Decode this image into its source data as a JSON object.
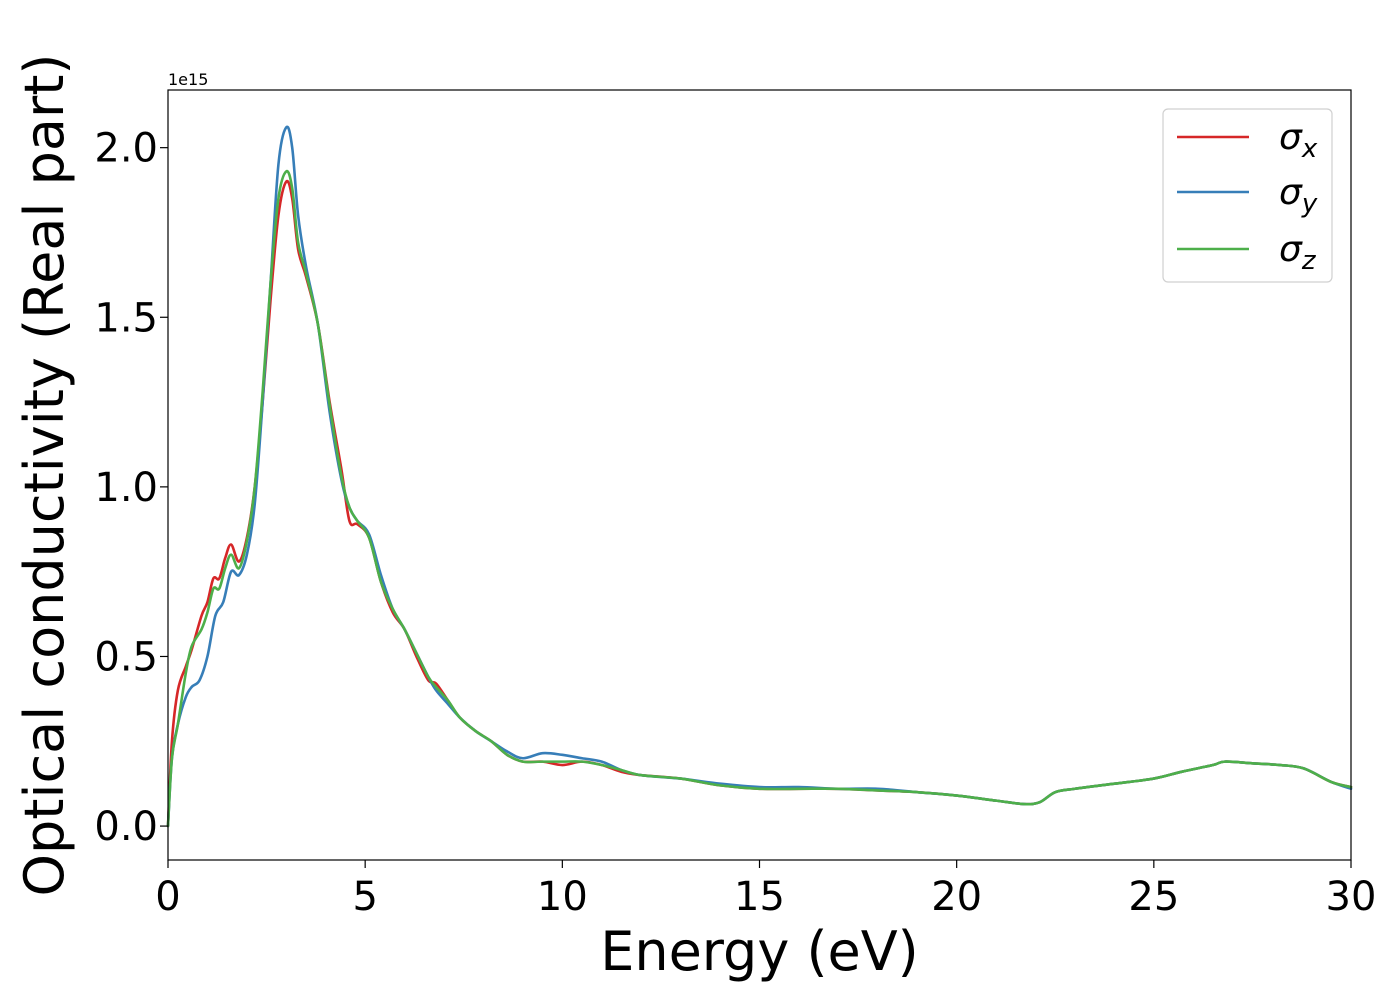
{
  "chart_data": {
    "type": "line",
    "xlabel": "Energy (eV)",
    "ylabel": "Optical conductivity (Real part)",
    "y_offset_label": "1e15",
    "y_multiplier": 1000000000000000.0,
    "xlim": [
      0,
      30
    ],
    "ylim": [
      -0.1,
      2.17
    ],
    "x_ticks": [
      0,
      5,
      10,
      15,
      20,
      25,
      30
    ],
    "x_tick_labels": [
      "0",
      "5",
      "10",
      "15",
      "20",
      "25",
      "30"
    ],
    "y_ticks": [
      0.0,
      0.5,
      1.0,
      1.5,
      2.0
    ],
    "y_tick_labels": [
      "0.0",
      "0.5",
      "1.0",
      "1.5",
      "2.0"
    ],
    "grid": false,
    "legend_position": "top-right",
    "series": [
      {
        "name": "σ",
        "subscript": "x",
        "color": "#d62728",
        "points": [
          [
            0,
            0.0
          ],
          [
            0.1,
            0.25
          ],
          [
            0.25,
            0.4
          ],
          [
            0.45,
            0.47
          ],
          [
            0.6,
            0.52
          ],
          [
            0.85,
            0.62
          ],
          [
            1.0,
            0.66
          ],
          [
            1.15,
            0.73
          ],
          [
            1.3,
            0.73
          ],
          [
            1.45,
            0.79
          ],
          [
            1.6,
            0.83
          ],
          [
            1.8,
            0.78
          ],
          [
            2.0,
            0.85
          ],
          [
            2.2,
            1.0
          ],
          [
            2.4,
            1.25
          ],
          [
            2.6,
            1.55
          ],
          [
            2.8,
            1.8
          ],
          [
            3.0,
            1.9
          ],
          [
            3.15,
            1.85
          ],
          [
            3.3,
            1.7
          ],
          [
            3.5,
            1.62
          ],
          [
            3.8,
            1.48
          ],
          [
            4.1,
            1.25
          ],
          [
            4.4,
            1.05
          ],
          [
            4.6,
            0.9
          ],
          [
            4.8,
            0.89
          ],
          [
            5.1,
            0.85
          ],
          [
            5.4,
            0.72
          ],
          [
            5.7,
            0.63
          ],
          [
            6.0,
            0.58
          ],
          [
            6.3,
            0.5
          ],
          [
            6.6,
            0.43
          ],
          [
            6.8,
            0.42
          ],
          [
            7.1,
            0.37
          ],
          [
            7.4,
            0.32
          ],
          [
            7.8,
            0.28
          ],
          [
            8.2,
            0.25
          ],
          [
            8.6,
            0.21
          ],
          [
            9.0,
            0.19
          ],
          [
            9.5,
            0.19
          ],
          [
            10.0,
            0.18
          ],
          [
            10.5,
            0.19
          ],
          [
            11.0,
            0.18
          ],
          [
            11.5,
            0.16
          ],
          [
            12.0,
            0.15
          ],
          [
            13.0,
            0.14
          ],
          [
            14.0,
            0.12
          ],
          [
            15.0,
            0.11
          ],
          [
            16.0,
            0.11
          ],
          [
            17.0,
            0.11
          ],
          [
            18.0,
            0.105
          ],
          [
            19.0,
            0.1
          ],
          [
            20.0,
            0.09
          ],
          [
            21.0,
            0.075
          ],
          [
            21.7,
            0.065
          ],
          [
            22.1,
            0.07
          ],
          [
            22.5,
            0.1
          ],
          [
            23.0,
            0.11
          ],
          [
            24.0,
            0.125
          ],
          [
            25.0,
            0.14
          ],
          [
            25.7,
            0.16
          ],
          [
            26.5,
            0.18
          ],
          [
            26.8,
            0.19
          ],
          [
            27.5,
            0.185
          ],
          [
            28.2,
            0.18
          ],
          [
            28.8,
            0.17
          ],
          [
            29.5,
            0.13
          ],
          [
            30,
            0.115
          ]
        ]
      },
      {
        "name": "σ",
        "subscript": "y",
        "color": "#377eb8",
        "points": [
          [
            0,
            0.0
          ],
          [
            0.1,
            0.2
          ],
          [
            0.25,
            0.3
          ],
          [
            0.45,
            0.38
          ],
          [
            0.6,
            0.41
          ],
          [
            0.8,
            0.43
          ],
          [
            1.0,
            0.5
          ],
          [
            1.2,
            0.62
          ],
          [
            1.4,
            0.66
          ],
          [
            1.6,
            0.75
          ],
          [
            1.8,
            0.74
          ],
          [
            2.0,
            0.8
          ],
          [
            2.2,
            0.95
          ],
          [
            2.4,
            1.25
          ],
          [
            2.6,
            1.6
          ],
          [
            2.8,
            1.95
          ],
          [
            3.0,
            2.06
          ],
          [
            3.15,
            2.0
          ],
          [
            3.3,
            1.8
          ],
          [
            3.5,
            1.65
          ],
          [
            3.8,
            1.48
          ],
          [
            4.1,
            1.22
          ],
          [
            4.4,
            1.02
          ],
          [
            4.6,
            0.94
          ],
          [
            4.8,
            0.9
          ],
          [
            5.1,
            0.86
          ],
          [
            5.4,
            0.74
          ],
          [
            5.7,
            0.64
          ],
          [
            6.0,
            0.58
          ],
          [
            6.3,
            0.51
          ],
          [
            6.6,
            0.44
          ],
          [
            6.8,
            0.4
          ],
          [
            7.1,
            0.36
          ],
          [
            7.4,
            0.32
          ],
          [
            7.8,
            0.28
          ],
          [
            8.2,
            0.25
          ],
          [
            8.6,
            0.22
          ],
          [
            9.0,
            0.2
          ],
          [
            9.5,
            0.215
          ],
          [
            10.0,
            0.21
          ],
          [
            10.5,
            0.2
          ],
          [
            11.0,
            0.19
          ],
          [
            11.5,
            0.165
          ],
          [
            12.0,
            0.15
          ],
          [
            13.0,
            0.14
          ],
          [
            14.0,
            0.125
          ],
          [
            15.0,
            0.115
          ],
          [
            16.0,
            0.115
          ],
          [
            17.0,
            0.11
          ],
          [
            18.0,
            0.11
          ],
          [
            19.0,
            0.1
          ],
          [
            20.0,
            0.09
          ],
          [
            21.0,
            0.075
          ],
          [
            21.7,
            0.065
          ],
          [
            22.1,
            0.07
          ],
          [
            22.5,
            0.1
          ],
          [
            23.0,
            0.11
          ],
          [
            24.0,
            0.125
          ],
          [
            25.0,
            0.14
          ],
          [
            25.7,
            0.16
          ],
          [
            26.5,
            0.18
          ],
          [
            26.8,
            0.19
          ],
          [
            27.5,
            0.185
          ],
          [
            28.2,
            0.18
          ],
          [
            28.8,
            0.17
          ],
          [
            29.5,
            0.13
          ],
          [
            30,
            0.11
          ]
        ]
      },
      {
        "name": "σ",
        "subscript": "z",
        "color": "#4daf4a",
        "points": [
          [
            0,
            0.0
          ],
          [
            0.1,
            0.2
          ],
          [
            0.25,
            0.3
          ],
          [
            0.45,
            0.45
          ],
          [
            0.6,
            0.53
          ],
          [
            0.85,
            0.58
          ],
          [
            1.0,
            0.63
          ],
          [
            1.15,
            0.7
          ],
          [
            1.3,
            0.7
          ],
          [
            1.45,
            0.76
          ],
          [
            1.6,
            0.8
          ],
          [
            1.8,
            0.76
          ],
          [
            2.0,
            0.84
          ],
          [
            2.2,
            1.0
          ],
          [
            2.4,
            1.28
          ],
          [
            2.6,
            1.6
          ],
          [
            2.8,
            1.85
          ],
          [
            3.0,
            1.93
          ],
          [
            3.15,
            1.88
          ],
          [
            3.3,
            1.72
          ],
          [
            3.5,
            1.63
          ],
          [
            3.8,
            1.48
          ],
          [
            4.1,
            1.24
          ],
          [
            4.4,
            1.03
          ],
          [
            4.6,
            0.94
          ],
          [
            4.8,
            0.9
          ],
          [
            5.1,
            0.85
          ],
          [
            5.4,
            0.72
          ],
          [
            5.7,
            0.64
          ],
          [
            6.0,
            0.58
          ],
          [
            6.3,
            0.51
          ],
          [
            6.6,
            0.44
          ],
          [
            6.8,
            0.41
          ],
          [
            7.1,
            0.37
          ],
          [
            7.4,
            0.32
          ],
          [
            7.8,
            0.28
          ],
          [
            8.2,
            0.25
          ],
          [
            8.6,
            0.21
          ],
          [
            9.0,
            0.19
          ],
          [
            9.5,
            0.19
          ],
          [
            10.0,
            0.19
          ],
          [
            10.5,
            0.19
          ],
          [
            11.0,
            0.18
          ],
          [
            11.5,
            0.165
          ],
          [
            12.0,
            0.15
          ],
          [
            13.0,
            0.14
          ],
          [
            14.0,
            0.12
          ],
          [
            15.0,
            0.11
          ],
          [
            16.0,
            0.11
          ],
          [
            17.0,
            0.11
          ],
          [
            18.0,
            0.105
          ],
          [
            19.0,
            0.1
          ],
          [
            20.0,
            0.09
          ],
          [
            21.0,
            0.075
          ],
          [
            21.7,
            0.065
          ],
          [
            22.1,
            0.07
          ],
          [
            22.5,
            0.1
          ],
          [
            23.0,
            0.11
          ],
          [
            24.0,
            0.125
          ],
          [
            25.0,
            0.14
          ],
          [
            25.7,
            0.16
          ],
          [
            26.5,
            0.18
          ],
          [
            26.8,
            0.19
          ],
          [
            27.5,
            0.185
          ],
          [
            28.2,
            0.18
          ],
          [
            28.8,
            0.17
          ],
          [
            29.5,
            0.13
          ],
          [
            30,
            0.115
          ]
        ]
      }
    ]
  }
}
